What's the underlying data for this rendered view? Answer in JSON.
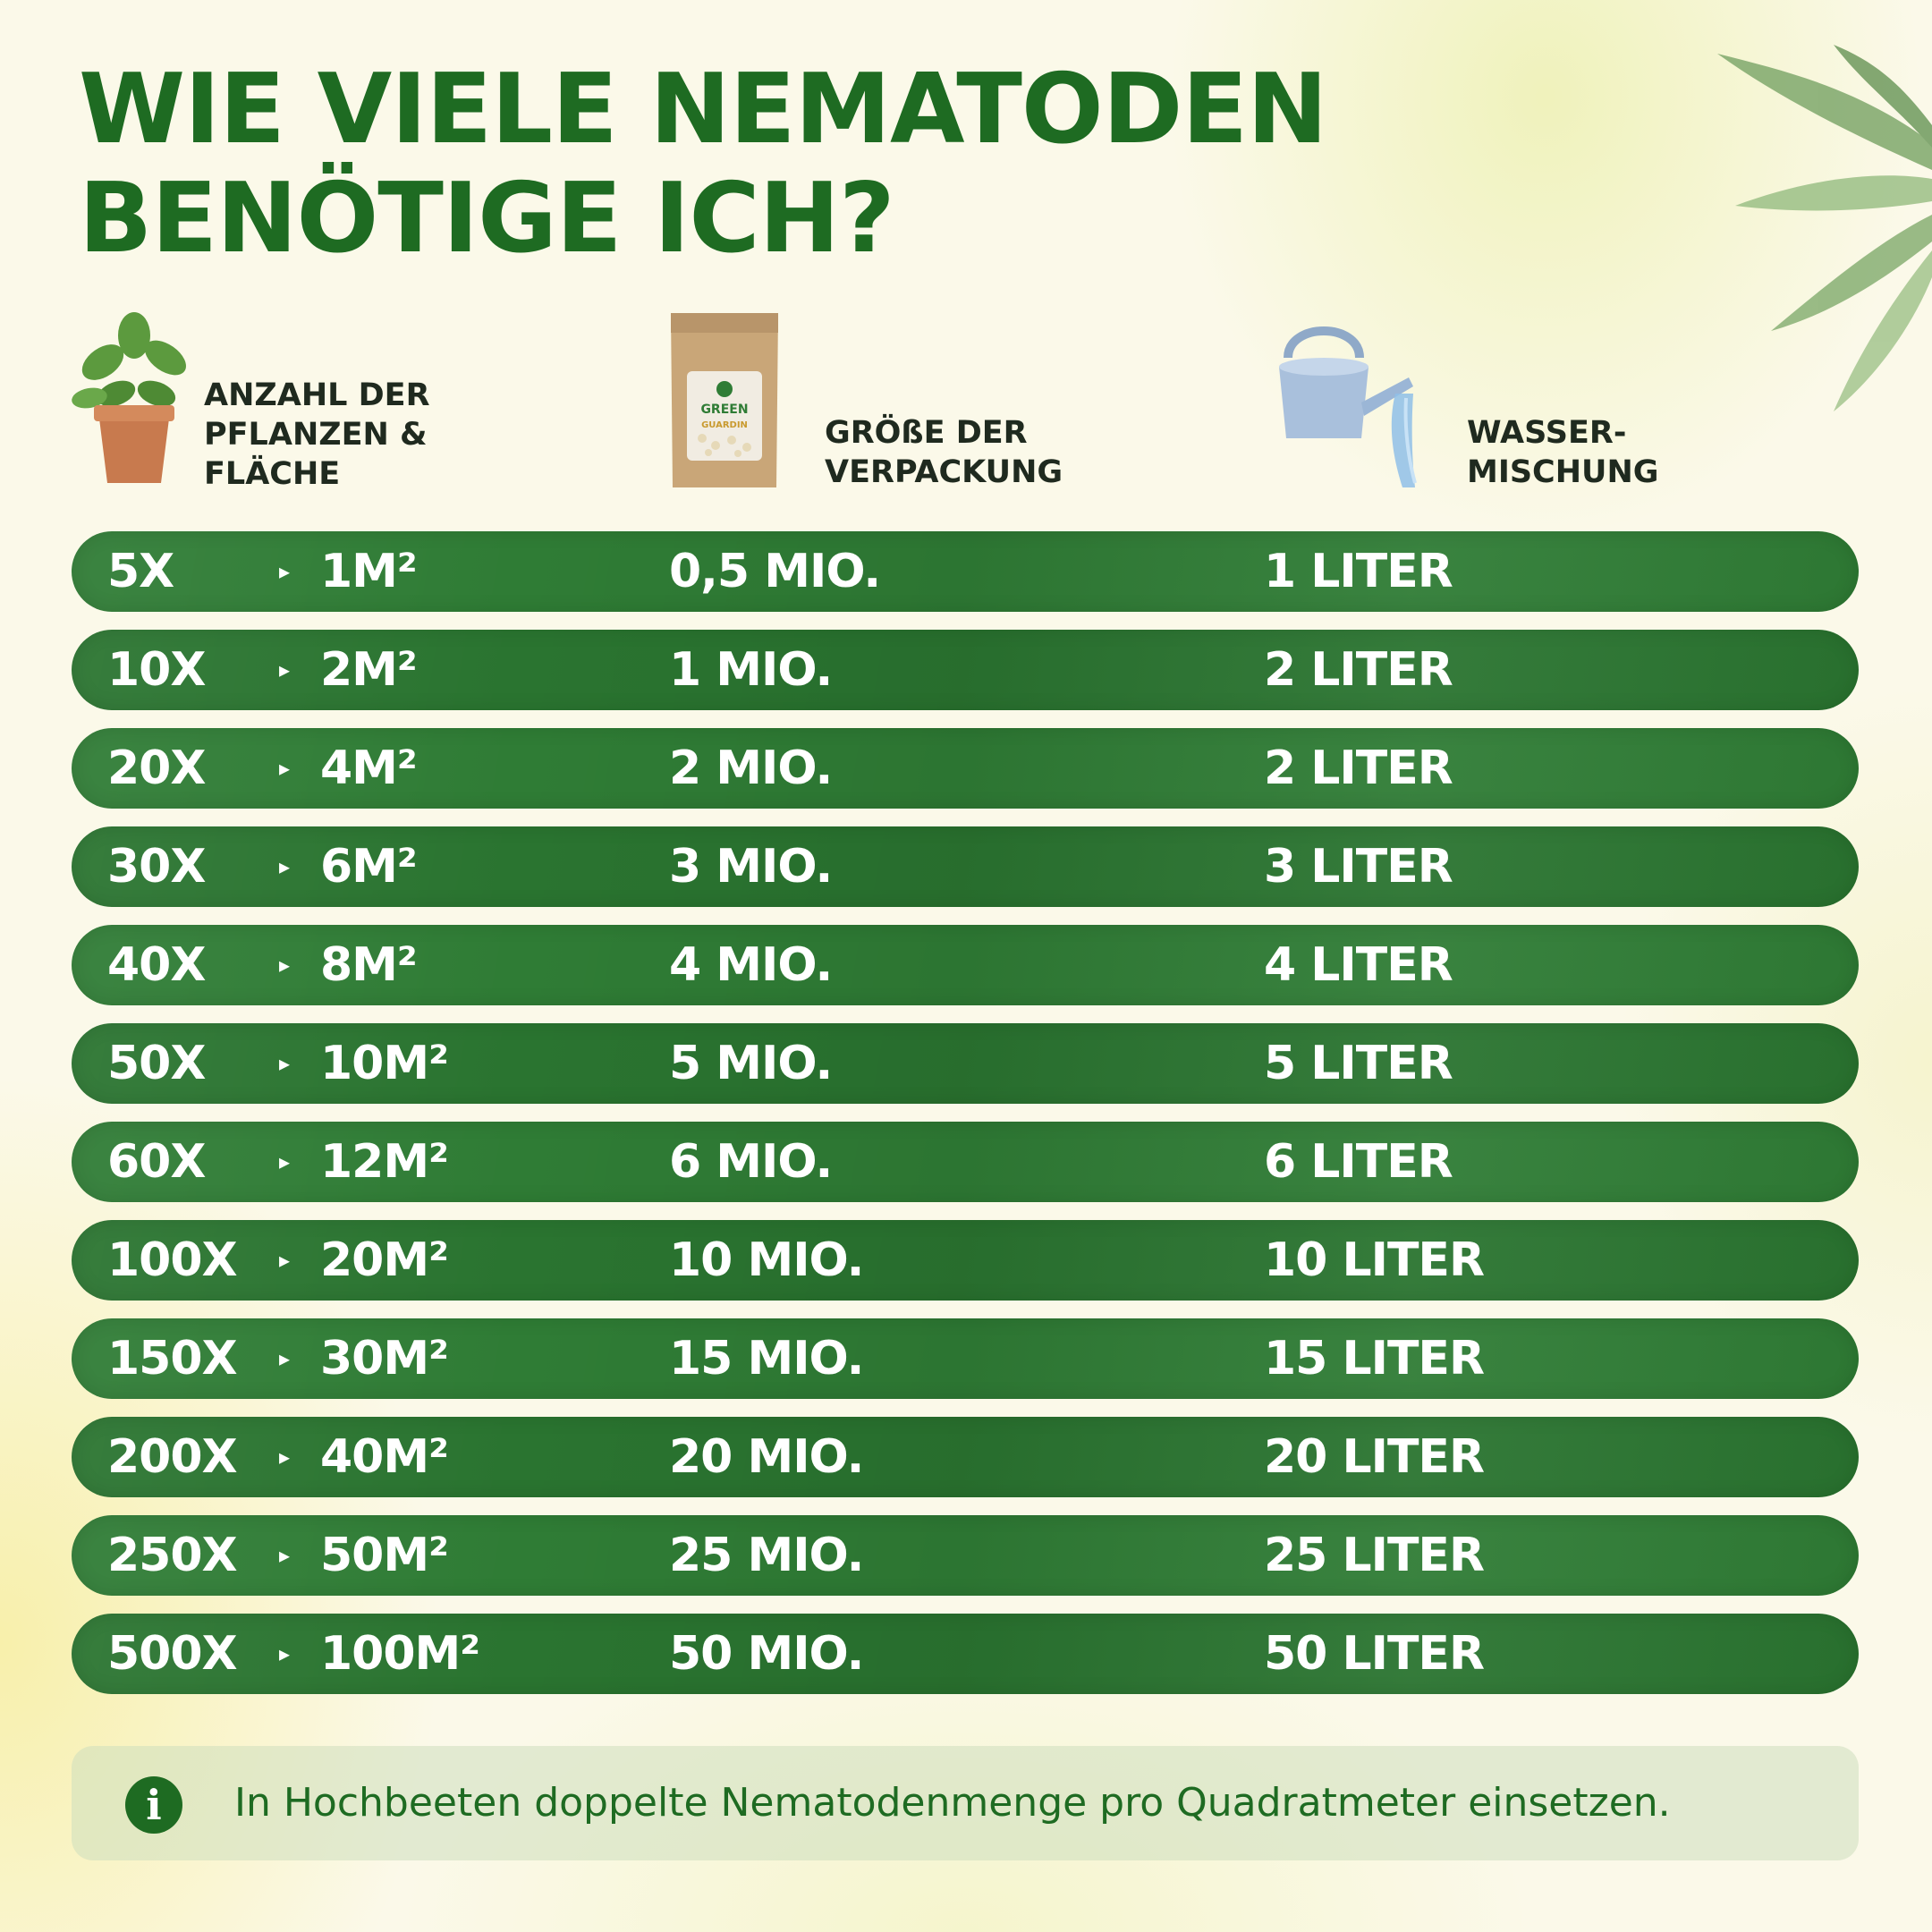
{
  "title": {
    "line1": "WIE VIELE NEMATODEN",
    "line2": "BENÖTIGE ICH?"
  },
  "headers": {
    "plants": [
      "ANZAHL DER",
      "PFLANZEN &",
      "FLÄCHE"
    ],
    "package": [
      "GRÖßE DER",
      "VERPACKUNG"
    ],
    "water": [
      "WASSER-",
      "MISCHUNG"
    ]
  },
  "package_label": {
    "brand1": "GREEN",
    "brand2": "GUARDIN"
  },
  "rows": [
    {
      "count": "5X",
      "area": "1M²",
      "package": "0,5 MIO.",
      "water": "1 LITER"
    },
    {
      "count": "10X",
      "area": "2M²",
      "package": "1 MIO.",
      "water": "2 LITER"
    },
    {
      "count": "20X",
      "area": "4M²",
      "package": "2 MIO.",
      "water": "2 LITER"
    },
    {
      "count": "30X",
      "area": "6M²",
      "package": "3 MIO.",
      "water": "3 LITER"
    },
    {
      "count": "40X",
      "area": "8M²",
      "package": "4 MIO.",
      "water": "4 LITER"
    },
    {
      "count": "50X",
      "area": "10M²",
      "package": "5 MIO.",
      "water": "5 LITER"
    },
    {
      "count": "60X",
      "area": "12M²",
      "package": "6 MIO.",
      "water": "6 LITER"
    },
    {
      "count": "100X",
      "area": "20M²",
      "package": "10 MIO.",
      "water": "10 LITER"
    },
    {
      "count": "150X",
      "area": "30M²",
      "package": "15 MIO.",
      "water": "15 LITER"
    },
    {
      "count": "200X",
      "area": "40M²",
      "package": "20 MIO.",
      "water": "20 LITER"
    },
    {
      "count": "250X",
      "area": "50M²",
      "package": "25 MIO.",
      "water": "25 LITER"
    },
    {
      "count": "500X",
      "area": "100M²",
      "package": "50 MIO.",
      "water": "50 LITER"
    }
  ],
  "arrow_glyph": "▸",
  "info": {
    "icon": "i",
    "text": "In Hochbeeten doppelte Nematodenmenge pro Quadratmeter einsetzen."
  },
  "colors": {
    "title_green": "#1e6b22",
    "row_green": "#2d7a33",
    "background": "#fbf9e9",
    "info_background": "#d6e3c6"
  },
  "icons": [
    "potted-plant-icon",
    "package-bag-icon",
    "watering-can-icon",
    "leaves-decoration",
    "info-icon"
  ]
}
